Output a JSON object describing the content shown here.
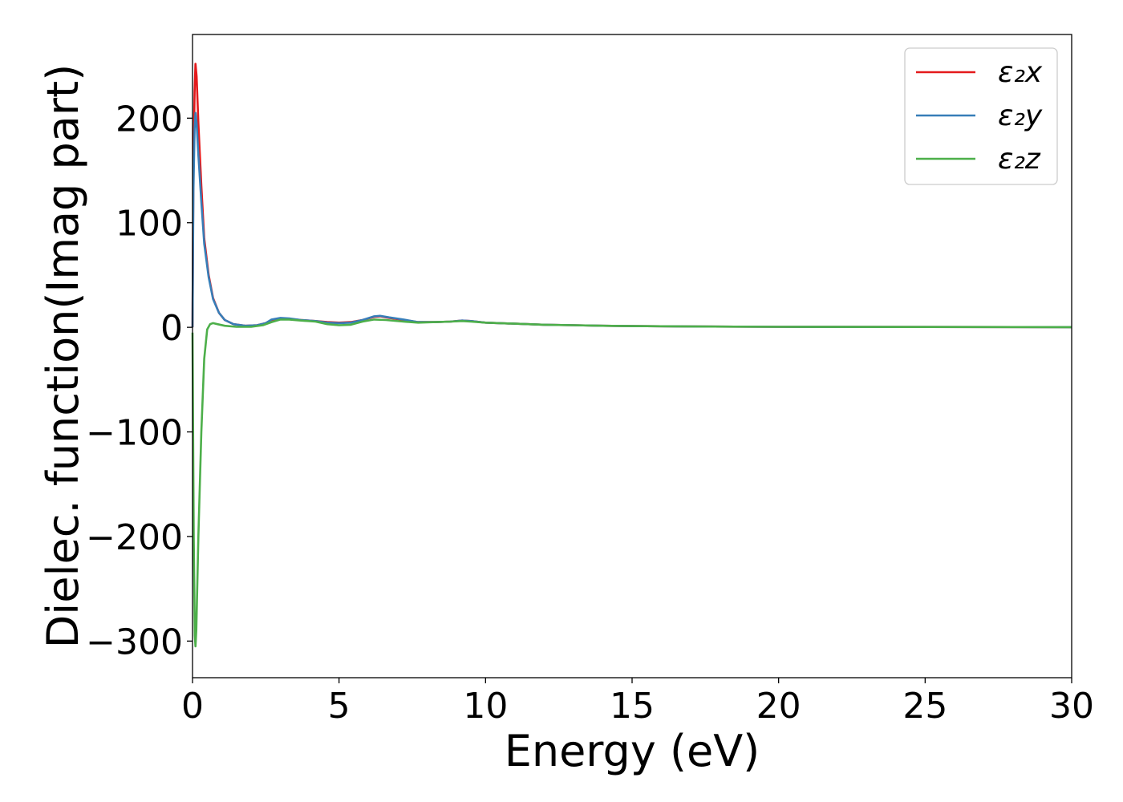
{
  "chart_data": {
    "type": "line",
    "title": "",
    "xlabel": "Energy (eV)",
    "ylabel": "Dielec. function(Imag part)",
    "xlim": [
      0,
      30
    ],
    "ylim": [
      -335,
      280
    ],
    "x_ticks": [
      0,
      5,
      10,
      15,
      20,
      25,
      30
    ],
    "x_tick_labels": [
      "0",
      "5",
      "10",
      "15",
      "20",
      "25",
      "30"
    ],
    "y_ticks": [
      -300,
      -200,
      -100,
      0,
      100,
      200
    ],
    "y_tick_labels": [
      "−300",
      "−200",
      "−100",
      "0",
      "100",
      "200"
    ],
    "grid": false,
    "legend_position": "top-right",
    "series": [
      {
        "name": "ε₂x",
        "color": "#e41a1c",
        "points": [
          [
            0,
            0
          ],
          [
            0.03,
            150
          ],
          [
            0.07,
            225
          ],
          [
            0.1,
            252
          ],
          [
            0.14,
            240
          ],
          [
            0.2,
            195
          ],
          [
            0.3,
            135
          ],
          [
            0.4,
            85
          ],
          [
            0.55,
            50
          ],
          [
            0.7,
            28
          ],
          [
            0.9,
            14
          ],
          [
            1.1,
            7
          ],
          [
            1.4,
            3
          ],
          [
            1.8,
            1.5
          ],
          [
            2.2,
            2
          ],
          [
            2.5,
            4
          ],
          [
            2.7,
            7
          ],
          [
            3.0,
            8.5
          ],
          [
            3.3,
            8
          ],
          [
            3.7,
            7
          ],
          [
            4.2,
            6
          ],
          [
            4.6,
            5
          ],
          [
            5.0,
            4.5
          ],
          [
            5.4,
            5
          ],
          [
            5.8,
            7
          ],
          [
            6.2,
            10
          ],
          [
            6.4,
            10.5
          ],
          [
            6.7,
            9
          ],
          [
            7.2,
            7
          ],
          [
            7.7,
            5
          ],
          [
            8.3,
            5
          ],
          [
            8.8,
            5.5
          ],
          [
            9.2,
            6.5
          ],
          [
            9.5,
            6
          ],
          [
            10,
            4.5
          ],
          [
            11,
            3.5
          ],
          [
            12,
            2.5
          ],
          [
            13,
            2
          ],
          [
            14,
            1.5
          ],
          [
            15,
            1.2
          ],
          [
            17,
            0.8
          ],
          [
            20,
            0.5
          ],
          [
            25,
            0.3
          ],
          [
            30,
            0.2
          ]
        ]
      },
      {
        "name": "ε₂y",
        "color": "#377eb8",
        "points": [
          [
            0,
            0
          ],
          [
            0.03,
            130
          ],
          [
            0.07,
            190
          ],
          [
            0.1,
            205
          ],
          [
            0.14,
            195
          ],
          [
            0.2,
            165
          ],
          [
            0.3,
            120
          ],
          [
            0.4,
            80
          ],
          [
            0.55,
            48
          ],
          [
            0.7,
            27
          ],
          [
            0.9,
            14
          ],
          [
            1.1,
            7
          ],
          [
            1.4,
            3
          ],
          [
            1.8,
            1.5
          ],
          [
            2.2,
            2
          ],
          [
            2.5,
            4
          ],
          [
            2.7,
            7.5
          ],
          [
            3.0,
            9
          ],
          [
            3.3,
            8.5
          ],
          [
            3.7,
            7
          ],
          [
            4.2,
            6
          ],
          [
            4.6,
            4.5
          ],
          [
            5.0,
            4
          ],
          [
            5.4,
            4.5
          ],
          [
            5.8,
            7
          ],
          [
            6.2,
            10.5
          ],
          [
            6.4,
            11
          ],
          [
            6.7,
            9.5
          ],
          [
            7.2,
            7.5
          ],
          [
            7.7,
            5
          ],
          [
            8.3,
            5
          ],
          [
            8.8,
            5.5
          ],
          [
            9.2,
            6.5
          ],
          [
            9.5,
            6
          ],
          [
            10,
            4.5
          ],
          [
            11,
            3.5
          ],
          [
            12,
            2.5
          ],
          [
            13,
            2
          ],
          [
            14,
            1.5
          ],
          [
            15,
            1.2
          ],
          [
            17,
            0.8
          ],
          [
            20,
            0.5
          ],
          [
            25,
            0.3
          ],
          [
            30,
            0.2
          ]
        ]
      },
      {
        "name": "ε₂z",
        "color": "#4daf4a",
        "points": [
          [
            0,
            -5
          ],
          [
            0.04,
            -200
          ],
          [
            0.08,
            -295
          ],
          [
            0.1,
            -305
          ],
          [
            0.13,
            -290
          ],
          [
            0.2,
            -200
          ],
          [
            0.3,
            -100
          ],
          [
            0.4,
            -30
          ],
          [
            0.5,
            -2
          ],
          [
            0.6,
            3
          ],
          [
            0.7,
            4
          ],
          [
            0.85,
            3
          ],
          [
            1.1,
            1.5
          ],
          [
            1.5,
            0.5
          ],
          [
            2.0,
            0.5
          ],
          [
            2.4,
            2
          ],
          [
            2.7,
            5
          ],
          [
            3.0,
            7.5
          ],
          [
            3.3,
            7.5
          ],
          [
            3.7,
            6.5
          ],
          [
            4.2,
            5.5
          ],
          [
            4.6,
            3
          ],
          [
            5.0,
            2
          ],
          [
            5.4,
            2.5
          ],
          [
            5.8,
            5.5
          ],
          [
            6.2,
            7.5
          ],
          [
            6.6,
            7
          ],
          [
            7.2,
            5.5
          ],
          [
            7.7,
            4.5
          ],
          [
            8.3,
            5
          ],
          [
            8.8,
            5.5
          ],
          [
            9.2,
            6
          ],
          [
            9.5,
            5.5
          ],
          [
            10,
            4.5
          ],
          [
            11,
            3.5
          ],
          [
            12,
            2.5
          ],
          [
            13,
            2
          ],
          [
            14,
            1.5
          ],
          [
            15,
            1.2
          ],
          [
            17,
            0.8
          ],
          [
            20,
            0.5
          ],
          [
            25,
            0.3
          ],
          [
            30,
            0.2
          ]
        ]
      }
    ]
  }
}
